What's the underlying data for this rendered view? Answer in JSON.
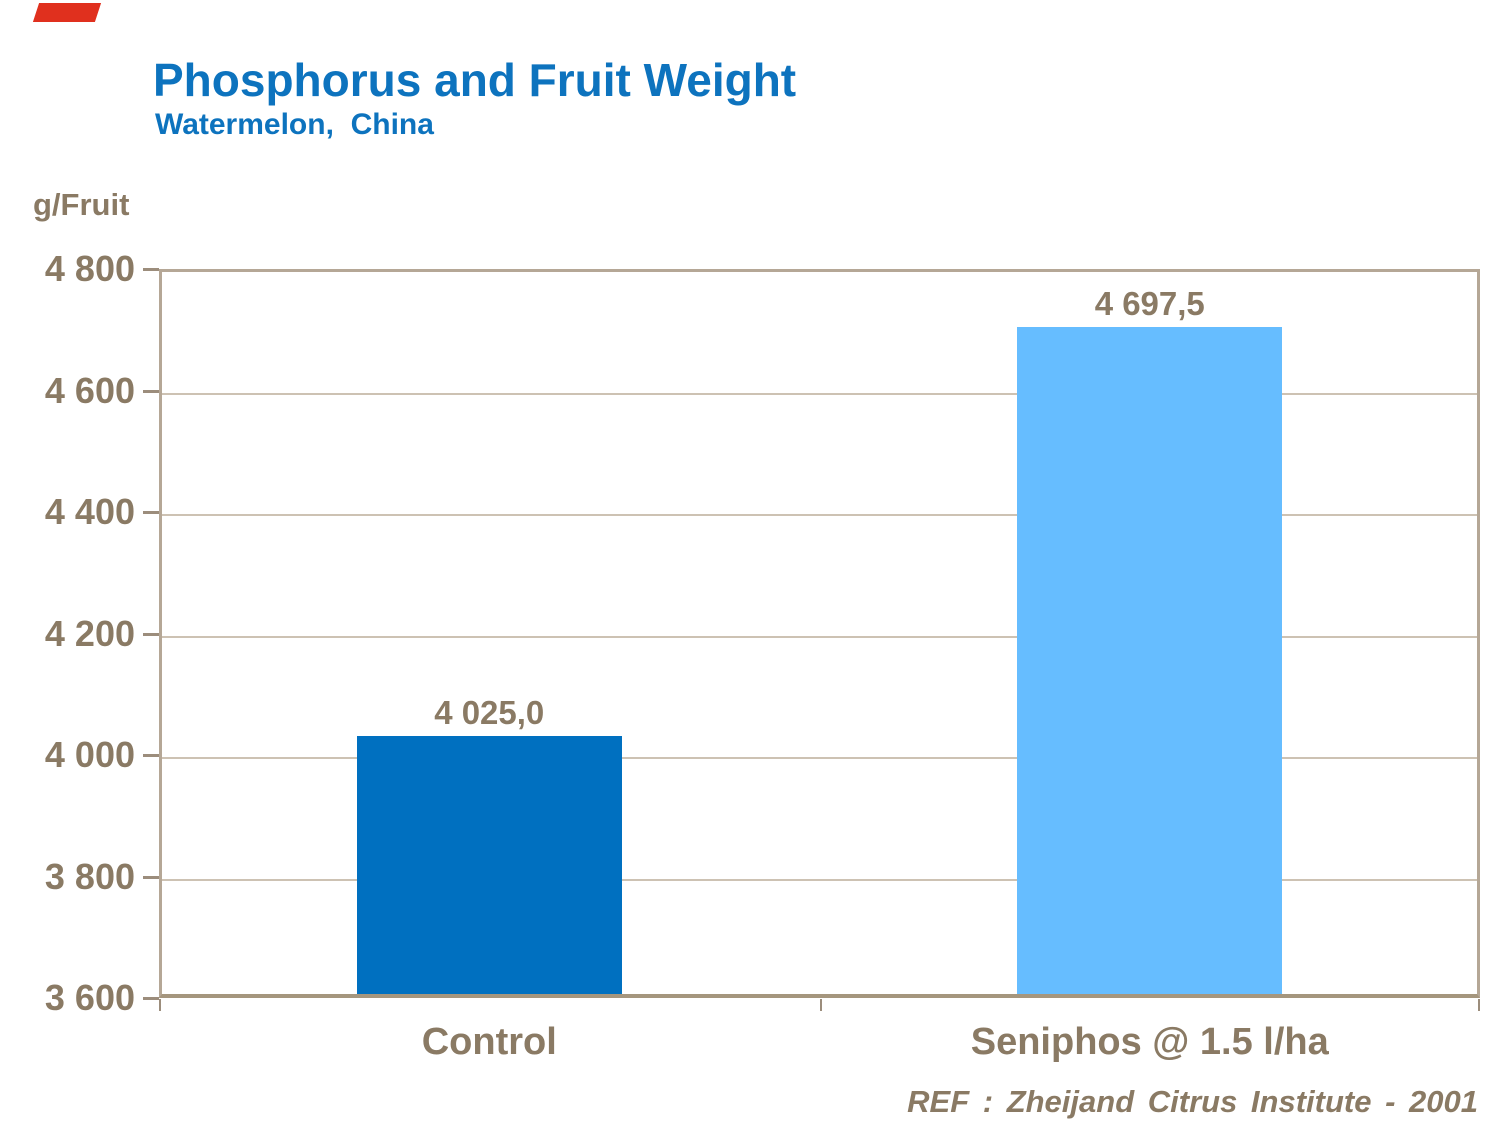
{
  "slide": {
    "title": "Phosphorus and Fruit Weight",
    "subtitle": "Watermelon,  China",
    "reference": "REF : Zheijand Citrus Institute - 2001"
  },
  "colors": {
    "title_blue": "#0D73BE",
    "text_taupe": "#8A7A64",
    "frame_tan": "#B5A796",
    "axis_dark_tan": "#A5967E",
    "gridline_tan": "#CDC2B3",
    "tick_tan": "#9C8D7C",
    "ribbon_red": "#E0301E"
  },
  "icons": {
    "corner_ribbon": "red-corner-ribbon"
  },
  "chart_data": {
    "type": "bar",
    "title": "Phosphorus and Fruit Weight",
    "subtitle": "Watermelon, China",
    "ylabel": "g/Fruit",
    "categories": [
      "Control",
      "Seniphos @ 1.5 l/ha"
    ],
    "values": [
      4025.0,
      4697.5
    ],
    "value_labels": [
      "4 025,0",
      "4 697,5"
    ],
    "bar_colors": [
      "#0070C0",
      "#66BDFF"
    ],
    "ylim": [
      3600,
      4800
    ],
    "yticks": [
      3600,
      3800,
      4000,
      4200,
      4400,
      4600,
      4800
    ],
    "ytick_labels": [
      "3 600",
      "3 800",
      "4 000",
      "4 200",
      "4 400",
      "4 600",
      "4 800"
    ],
    "grid": true,
    "legend": false,
    "annotations": [
      "REF : Zheijand Citrus Institute - 2001"
    ]
  }
}
